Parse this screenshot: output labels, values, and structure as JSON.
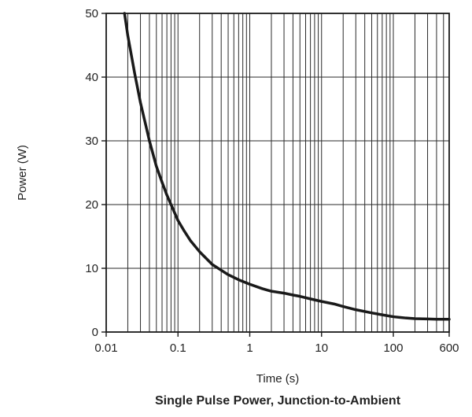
{
  "chart_data": {
    "type": "line",
    "title": "Single Pulse Power, Junction-to-Ambient",
    "xlabel": "Time (s)",
    "ylabel": "Power (W)",
    "xscale": "log",
    "xlim": [
      0.01,
      600
    ],
    "ylim": [
      0,
      50
    ],
    "x_ticks": [
      0.01,
      0.1,
      1,
      10,
      100,
      600
    ],
    "x_tick_labels": [
      "0.01",
      "0.1",
      "1",
      "10",
      "100",
      "600"
    ],
    "y_ticks": [
      0,
      10,
      20,
      30,
      40,
      50
    ],
    "y_tick_labels": [
      "0",
      "10",
      "20",
      "30",
      "40",
      "50"
    ],
    "grid": true,
    "line_color": "#1a1a1a",
    "series": [
      {
        "x": [
          0.018,
          0.02,
          0.025,
          0.03,
          0.04,
          0.05,
          0.06,
          0.07,
          0.08,
          0.1,
          0.12,
          0.15,
          0.2,
          0.3,
          0.4,
          0.5,
          0.7,
          1,
          1.5,
          2,
          3,
          4,
          5,
          7,
          10,
          15,
          20,
          30,
          50,
          70,
          100,
          150,
          200,
          300,
          400,
          600
        ],
        "y": [
          50,
          46.5,
          40.5,
          36,
          30,
          26,
          23.5,
          21.5,
          20,
          17.5,
          16,
          14.3,
          12.6,
          10.6,
          9.7,
          9.0,
          8.2,
          7.5,
          6.8,
          6.4,
          6.1,
          5.8,
          5.6,
          5.2,
          4.8,
          4.4,
          4.0,
          3.5,
          3.0,
          2.7,
          2.4,
          2.2,
          2.1,
          2.05,
          2.0,
          2.0
        ]
      }
    ]
  }
}
